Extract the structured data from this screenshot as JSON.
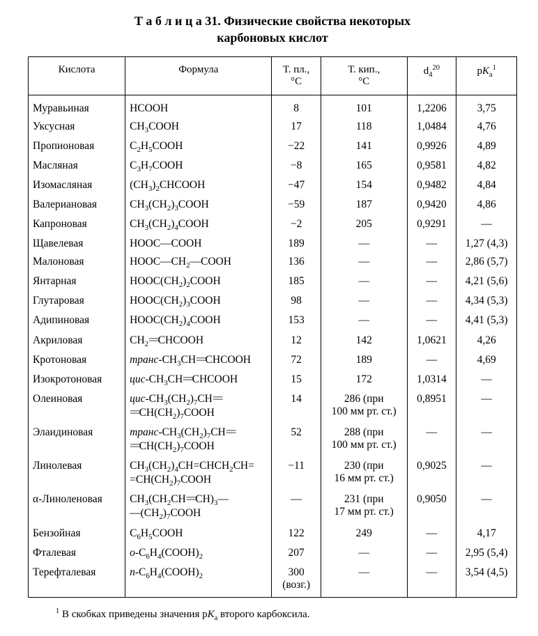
{
  "title": {
    "prefix_spaced": "Т а б л и ц а 31.",
    "line1": "Физические свойства некоторых",
    "line2": "карбоновых кислот"
  },
  "columns": {
    "name": "Кислота",
    "formula": "Формула",
    "mp": "Т. пл., °C",
    "bp": "Т. кип., °C",
    "dens": "d<span class='sub'>4</span><span class='sup'>20</span>",
    "pka": "p<span class='em'>K</span><span class='sub'>a</span><span class='sup'>1</span>"
  },
  "rows": [
    {
      "name": "Муравьиная",
      "formula": "HCOOH",
      "mp": "8",
      "bp": "101",
      "dens": "1,2206",
      "pka": "3,75"
    },
    {
      "name": "Уксусная",
      "formula": "CH<span class='sub'>3</span>COOH",
      "mp": "17",
      "bp": "118",
      "dens": "1,0484",
      "pka": "4,76"
    },
    {
      "name": "Пропионовая",
      "formula": "C<span class='sub'>2</span>H<span class='sub'>5</span>COOH",
      "mp": "−22",
      "bp": "141",
      "dens": "0,9926",
      "pka": "4,89"
    },
    {
      "name": "Масляная",
      "formula": "C<span class='sub'>3</span>H<span class='sub'>7</span>COOH",
      "mp": "−8",
      "bp": "165",
      "dens": "0,9581",
      "pka": "4,82"
    },
    {
      "name": "Изомасляная",
      "formula": "(CH<span class='sub'>3</span>)<span class='sub'>2</span>CHCOOH",
      "mp": "−47",
      "bp": "154",
      "dens": "0,9482",
      "pka": "4,84"
    },
    {
      "name": "Валериановая",
      "formula": "CH<span class='sub'>3</span>(CH<span class='sub'>2</span>)<span class='sub'>3</span>COOH",
      "mp": "−59",
      "bp": "187",
      "dens": "0,9420",
      "pka": "4,86"
    },
    {
      "name": "Капроновая",
      "formula": "CH<span class='sub'>3</span>(CH<span class='sub'>2</span>)<span class='sub'>4</span>COOH",
      "mp": "−2",
      "bp": "205",
      "dens": "0,9291",
      "pka": "—"
    },
    {
      "name": "Щавелевая",
      "formula": "HOOC—COOH",
      "mp": "189",
      "bp": "—",
      "dens": "—",
      "pka": "1,27 (4,3)"
    },
    {
      "name": "Малоновая",
      "formula": "HOOC—CH<span class='sub'>2</span>—COOH",
      "mp": "136",
      "bp": "—",
      "dens": "—",
      "pka": "2,86 (5,7)"
    },
    {
      "name": "Янтарная",
      "formula": "HOOC(CH<span class='sub'>2</span>)<span class='sub'>2</span>COOH",
      "mp": "185",
      "bp": "—",
      "dens": "—",
      "pka": "4,21 (5,6)"
    },
    {
      "name": "Глутаровая",
      "formula": "HOOC(CH<span class='sub'>2</span>)<span class='sub'>3</span>COOH",
      "mp": "98",
      "bp": "—",
      "dens": "—",
      "pka": "4,34 (5,3)"
    },
    {
      "name": "Адипиновая",
      "formula": "HOOC(CH<span class='sub'>2</span>)<span class='sub'>4</span>COOH",
      "mp": "153",
      "bp": "—",
      "dens": "—",
      "pka": "4,41 (5,3)"
    },
    {
      "name": "Акриловая",
      "formula": "CH<span class='sub'>2</span><span class='dbl'>==</span>CHCOOH",
      "mp": "12",
      "bp": "142",
      "dens": "1,0621",
      "pka": "4,26"
    },
    {
      "name": "Кротоновая",
      "formula": "<span class='em'>транс</span>-CH<span class='sub'>3</span>CH<span class='dbl'>==</span>CHCOOH",
      "mp": "72",
      "bp": "189",
      "dens": "—",
      "pka": "4,69"
    },
    {
      "name": "Изокротоновая",
      "formula": "<span class='em'>цис</span>-CH<span class='sub'>3</span>CH<span class='dbl'>==</span>CHCOOH",
      "mp": "15",
      "bp": "172",
      "dens": "1,0314",
      "pka": "—"
    },
    {
      "name": "Олеиновая",
      "formula": "<span class='em'>цис</span>-CH<span class='sub'>3</span>(CH<span class='sub'>2</span>)<span class='sub'>7</span>CH<span class='dbl'>==</span><br><span class='dbl'>==</span>CH(CH<span class='sub'>2</span>)<span class='sub'>7</span>COOH",
      "mp": "14",
      "bp": "286 (при<br>100 мм рт. ст.)",
      "dens": "0,8951",
      "pka": "—"
    },
    {
      "name": "Элаидиновая",
      "formula": "<span class='em'>транс</span>-CH<span class='sub'>3</span>(CH<span class='sub'>2</span>)<span class='sub'>7</span>CH<span class='dbl'>==</span><br><span class='dbl'>==</span>CH(CH<span class='sub'>2</span>)<span class='sub'>7</span>COOH",
      "mp": "52",
      "bp": "288 (при<br>100 мм рт. ст.)",
      "dens": "—",
      "pka": "—"
    },
    {
      "name": "Линолевая",
      "formula": "CH<span class='sub'>3</span>(CH<span class='sub'>2</span>)<span class='sub'>4</span>CH=CHCH<span class='sub'>2</span>CH=<br>=CH(CH<span class='sub'>2</span>)<span class='sub'>7</span>COOH",
      "mp": "−11",
      "bp": "230 (при<br>16 мм рт. ст.)",
      "dens": "0,9025",
      "pka": "—"
    },
    {
      "name": "α-Линоленовая",
      "formula": "CH<span class='sub'>3</span>(CH<span class='sub'>2</span>CH<span class='dbl'>==</span>CH)<span class='sub'>3</span>—<br>—(CH<span class='sub'>2</span>)<span class='sub'>7</span>COOH",
      "mp": "—",
      "bp": "231 (при<br>17 мм рт. ст.)",
      "dens": "0,9050",
      "pka": "—"
    },
    {
      "name": "Бензойная",
      "formula": "C<span class='sub'>6</span>H<span class='sub'>5</span>COOH",
      "mp": "122",
      "bp": "249",
      "dens": "—",
      "pka": "4,17"
    },
    {
      "name": "Фталевая",
      "formula": "<span class='em'>о</span>-C<span class='sub'>6</span>H<span class='sub'>4</span>(COOH)<span class='sub'>2</span>",
      "mp": "207",
      "bp": "—",
      "dens": "—",
      "pka": "2,95 (5,4)"
    },
    {
      "name": "Терефталевая",
      "formula": "<span class='em'>n</span>-C<span class='sub'>6</span>H<span class='sub'>4</span>(COOH)<span class='sub'>2</span>",
      "mp": "300<br>(возг.)",
      "bp": "—",
      "dens": "—",
      "pka": "3,54 (4,5)"
    }
  ],
  "footnote": "<span class='sup'>1</span> В скобках приведены значения p<span class='em'>K</span><span class='sub'>a</span> второго карбоксила."
}
